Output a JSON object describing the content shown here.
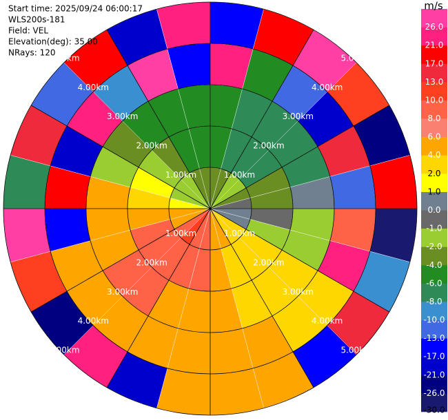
{
  "chart_data": {
    "type": "ppi",
    "info": [
      "Start time: 2025/09/24 06:00:17",
      "WLS200s-181",
      "Field: VEL",
      "Elevation(deg): 35.00",
      "NRays: 120"
    ],
    "unit": "m/s",
    "rings": [
      {
        "value": 1,
        "label": "1.00km"
      },
      {
        "value": 2,
        "label": "2.00km"
      },
      {
        "value": 3,
        "label": "3.00km"
      },
      {
        "value": 4,
        "label": "4.00km"
      },
      {
        "value": 5,
        "label": "5.00km"
      }
    ],
    "rlim": [
      0,
      5
    ],
    "azimuths": [
      0,
      15,
      30,
      45,
      60,
      75,
      90,
      105,
      120,
      135,
      150,
      165,
      180,
      195,
      210,
      225,
      240,
      255,
      270,
      285,
      300,
      315,
      330,
      345
    ],
    "azimuth_width": 15,
    "range_edges": [
      0,
      1,
      2,
      3,
      4,
      5
    ],
    "values": [
      [
        -3,
        -5,
        -5,
        22,
        -15
      ],
      [
        -3,
        -7,
        -7,
        -5,
        18
      ],
      [
        -1.5,
        -7,
        -7,
        -11,
        27
      ],
      [
        -1.5,
        -7,
        -7,
        -19,
        12
      ],
      [
        -3,
        -3,
        -7,
        14,
        -23
      ],
      [
        -0.5,
        -3,
        0.5,
        -12,
        20
      ],
      [
        0.5,
        -0.5,
        -1.5,
        9,
        -28
      ],
      [
        0.5,
        -1.5,
        -1.5,
        24,
        -9
      ],
      [
        3,
        3,
        3,
        3,
        16
      ],
      [
        3,
        3,
        3,
        3,
        -14
      ],
      [
        5,
        3,
        3,
        5,
        5
      ],
      [
        5,
        5,
        5,
        5,
        5
      ],
      [
        9,
        9,
        5,
        5,
        5
      ],
      [
        9,
        9,
        5,
        5,
        -18
      ],
      [
        11.5,
        9,
        9,
        5,
        22
      ],
      [
        9,
        9,
        9,
        5,
        -25
      ],
      [
        5,
        9,
        5,
        5,
        11
      ],
      [
        5,
        5,
        5,
        -16,
        28
      ],
      [
        1.5,
        3,
        5,
        19,
        -7
      ],
      [
        -1.5,
        1.5,
        -1.5,
        -21,
        15
      ],
      [
        -1.5,
        -1.5,
        -3,
        23,
        -12
      ],
      [
        -1.5,
        -3,
        -5,
        -9,
        17
      ],
      [
        -3,
        -5,
        -5,
        26,
        -19
      ],
      [
        -3,
        -5,
        -5,
        -14,
        24
      ]
    ],
    "clim": [
      -30,
      30
    ],
    "levels": [
      {
        "value": 26,
        "label": "26.0"
      },
      {
        "value": 21,
        "label": "21.0"
      },
      {
        "value": 17,
        "label": "17.0"
      },
      {
        "value": 13,
        "label": "13.0"
      },
      {
        "value": 10,
        "label": "10.0"
      },
      {
        "value": 8,
        "label": "8.0"
      },
      {
        "value": 6,
        "label": "6.0"
      },
      {
        "value": 4,
        "label": "4.0"
      },
      {
        "value": 2,
        "label": "2.0"
      },
      {
        "value": 1,
        "label": "1.0"
      },
      {
        "value": 0,
        "label": "0.0"
      },
      {
        "value": -1,
        "label": "-1.0"
      },
      {
        "value": -2,
        "label": "-2.0"
      },
      {
        "value": -4,
        "label": "-4.0"
      },
      {
        "value": -6,
        "label": "-6.0"
      },
      {
        "value": -8,
        "label": "-8.0"
      },
      {
        "value": -10,
        "label": "-10.0"
      },
      {
        "value": -13,
        "label": "-13.0"
      },
      {
        "value": -17,
        "label": "-17.0"
      },
      {
        "value": -21,
        "label": "-21.0"
      },
      {
        "value": -26,
        "label": "-26.0"
      },
      {
        "value": -30,
        "label": "-30.0"
      }
    ],
    "colors": [
      "#ff3fa4",
      "#ff2080",
      "#ff0000",
      "#ee2a3c",
      "#ff4020",
      "#ff6347",
      "#fa8072",
      "#ffa500",
      "#ffd700",
      "#ffff00",
      "#708090",
      "#696969",
      "#9acd32",
      "#6b8e23",
      "#228b22",
      "#2e8b57",
      "#3a8fd0",
      "#4169e1",
      "#0000ff",
      "#0000cd",
      "#000080",
      "#191970"
    ]
  }
}
